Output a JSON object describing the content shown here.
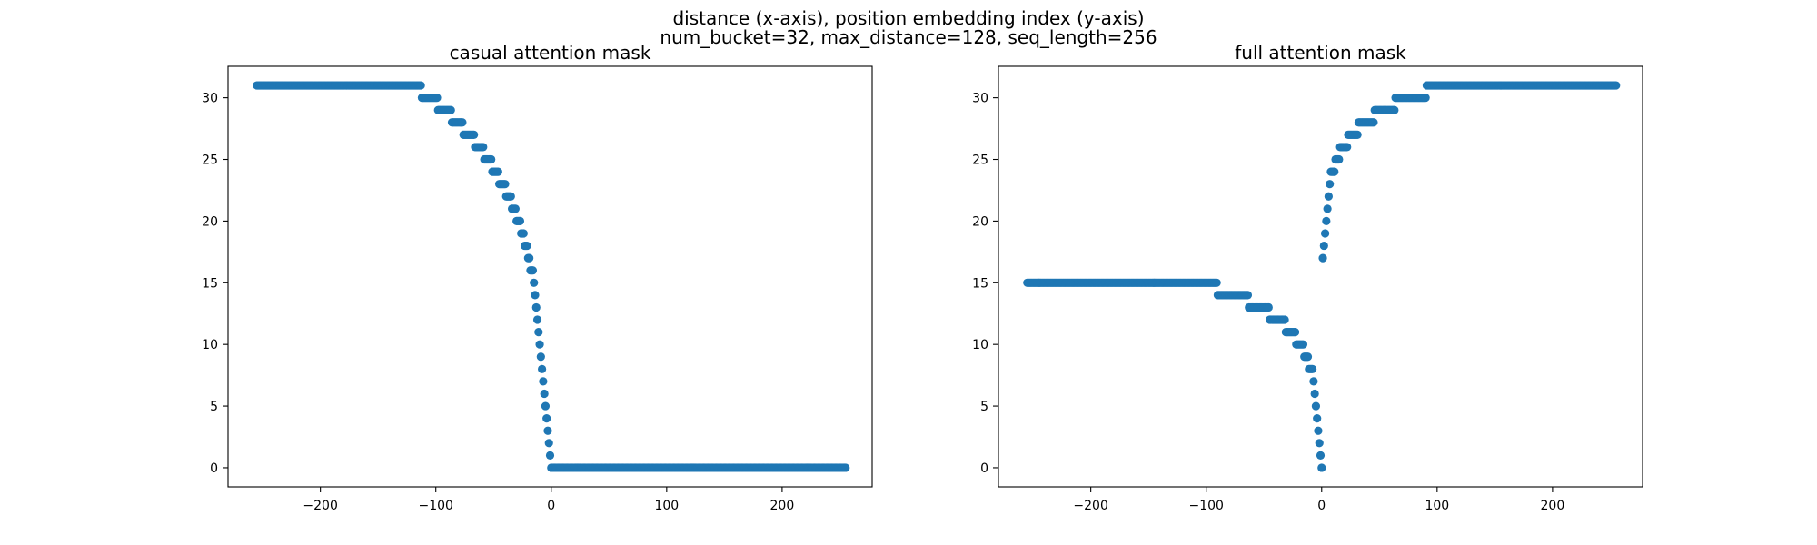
{
  "figure": {
    "suptitle_line1": "distance (x-axis), position embedding index (y-axis)",
    "suptitle_line2": "num_bucket=32, max_distance=128, seq_length=256"
  },
  "colors": {
    "marker": "#1f77b4",
    "axes": "#000000"
  },
  "chart_data": [
    {
      "type": "scatter",
      "title": "casual attention mask",
      "xlabel": "",
      "ylabel": "",
      "xlim": [
        -280,
        278
      ],
      "ylim": [
        -1.55,
        32.55
      ],
      "xticks": [
        -200,
        -100,
        0,
        100,
        200
      ],
      "yticks": [
        0,
        5,
        10,
        15,
        20,
        25,
        30
      ],
      "grid": false,
      "function": "causal_bucket",
      "x_range": [
        -255,
        255
      ],
      "num_buckets": 32,
      "max_distance": 128
    },
    {
      "type": "scatter",
      "title": "full attention mask",
      "xlabel": "",
      "ylabel": "",
      "xlim": [
        -280,
        278
      ],
      "ylim": [
        -1.55,
        32.55
      ],
      "xticks": [
        -200,
        -100,
        0,
        100,
        200
      ],
      "yticks": [
        0,
        5,
        10,
        15,
        20,
        25,
        30
      ],
      "grid": false,
      "function": "bidirectional_bucket",
      "x_range": [
        -255,
        255
      ],
      "num_buckets": 32,
      "max_distance": 128
    }
  ]
}
